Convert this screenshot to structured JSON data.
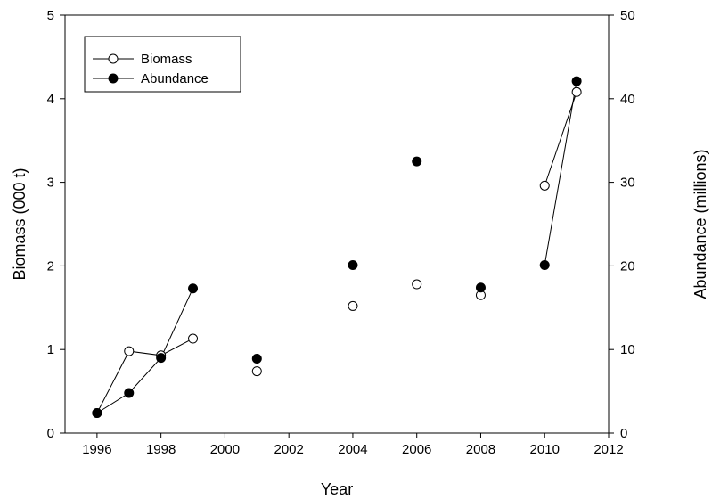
{
  "chart_data": {
    "type": "line",
    "xlabel": "Year",
    "ylabel": "Biomass (000 t)",
    "y2label": "Abundance (millions)",
    "xlim": [
      1995,
      2012
    ],
    "ylim": [
      0,
      5
    ],
    "y2lim": [
      0,
      50
    ],
    "xticks": [
      1996,
      1998,
      2000,
      2002,
      2004,
      2006,
      2008,
      2010,
      2012
    ],
    "yticks": [
      0,
      1,
      2,
      3,
      4,
      5
    ],
    "y2ticks": [
      0,
      10,
      20,
      30,
      40,
      50
    ],
    "legend_position": "top-left",
    "grid": false,
    "series": [
      {
        "name": "Biomass",
        "axis": "left",
        "marker": "open-circle",
        "color": "#000000",
        "points": [
          {
            "x": 1996,
            "y": 0.24
          },
          {
            "x": 1997,
            "y": 0.98
          },
          {
            "x": 1998,
            "y": 0.93
          },
          {
            "x": 1999,
            "y": 1.13
          },
          {
            "x": 2001,
            "y": 0.74
          },
          {
            "x": 2004,
            "y": 1.52
          },
          {
            "x": 2006,
            "y": 1.78
          },
          {
            "x": 2008,
            "y": 1.65
          },
          {
            "x": 2010,
            "y": 2.96
          },
          {
            "x": 2011,
            "y": 4.08
          }
        ],
        "line_segments": [
          [
            1996,
            1997,
            1998,
            1999
          ],
          [
            2010,
            2011
          ]
        ]
      },
      {
        "name": "Abundance",
        "axis": "right",
        "marker": "filled-circle",
        "color": "#000000",
        "points": [
          {
            "x": 1996,
            "y": 2.4
          },
          {
            "x": 1997,
            "y": 4.8
          },
          {
            "x": 1998,
            "y": 9.0
          },
          {
            "x": 1999,
            "y": 17.3
          },
          {
            "x": 2001,
            "y": 8.9
          },
          {
            "x": 2004,
            "y": 20.1
          },
          {
            "x": 2006,
            "y": 32.5
          },
          {
            "x": 2008,
            "y": 17.4
          },
          {
            "x": 2010,
            "y": 20.1
          },
          {
            "x": 2011,
            "y": 42.1
          }
        ],
        "line_segments": [
          [
            1996,
            1997,
            1998,
            1999
          ],
          [
            2010,
            2011
          ]
        ]
      }
    ]
  }
}
